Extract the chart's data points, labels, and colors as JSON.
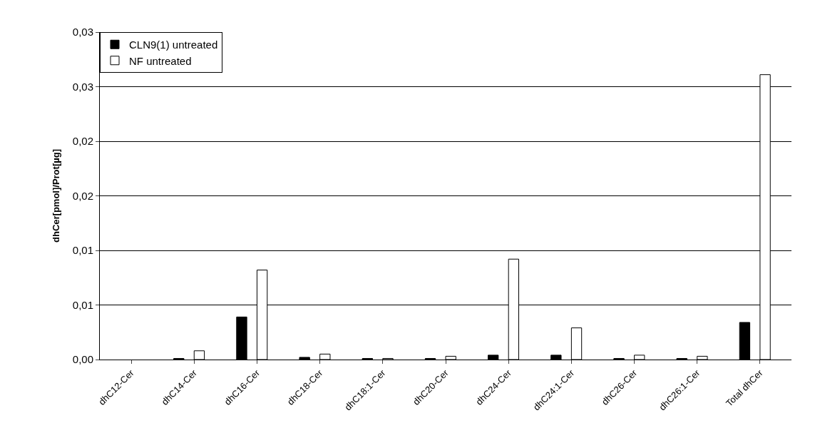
{
  "chart_data": {
    "type": "bar",
    "ylabel": "dhCer[pmol]/Prot[µg]",
    "categories": [
      "dhC12-Cer",
      "dhC14-Cer",
      "dhC16-Cer",
      "dhC18-Cer",
      "dhC18:1-Cer",
      "dhC20-Cer",
      "dhC24-Cer",
      "dhC24:1-Cer",
      "dhC26-Cer",
      "dhC26:1-Cer",
      "Total dhCer"
    ],
    "series": [
      {
        "name": "CLN9(1) untreated",
        "color": "#000000",
        "values": [
          0,
          0.0001,
          0.0039,
          0.0002,
          0.0001,
          0.0001,
          0.0004,
          0.0004,
          0.0001,
          0.0001,
          0.0034
        ]
      },
      {
        "name": "NF untreated",
        "color": "#ffffff",
        "values": [
          0,
          0.0008,
          0.0082,
          0.0005,
          0.0001,
          0.0003,
          0.0092,
          0.0029,
          0.0004,
          0.0003,
          0.0261
        ]
      }
    ],
    "ylim": [
      0,
      0.03
    ],
    "yticks": [
      {
        "value": 0,
        "label": "0,00"
      },
      {
        "value": 0.005,
        "label": "0,01"
      },
      {
        "value": 0.01,
        "label": "0,01"
      },
      {
        "value": 0.015,
        "label": "0,02"
      },
      {
        "value": 0.02,
        "label": "0,02"
      },
      {
        "value": 0.025,
        "label": "0,03"
      },
      {
        "value": 0.03,
        "label": "0,03"
      }
    ],
    "grid": "y",
    "legend": "top left"
  }
}
